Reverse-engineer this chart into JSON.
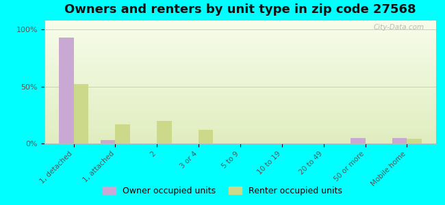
{
  "title": "Owners and renters by unit type in zip code 27568",
  "categories": [
    "1, detached",
    "1, attached",
    "2",
    "3 or 4",
    "5 to 9",
    "10 to 19",
    "20 to 49",
    "50 or more",
    "Mobile home"
  ],
  "owner_values": [
    93,
    3,
    0,
    0,
    0,
    0,
    0,
    5,
    5
  ],
  "renter_values": [
    52,
    17,
    20,
    12,
    0,
    0,
    0,
    0,
    4
  ],
  "owner_color": "#c9a8d4",
  "renter_color": "#ccd98a",
  "background_color": "#00ffff",
  "title_fontsize": 13,
  "ylabel_ticks": [
    "0%",
    "50%",
    "100%"
  ],
  "ylabel_values": [
    0,
    50,
    100
  ],
  "ylim": [
    0,
    108
  ],
  "legend_owner": "Owner occupied units",
  "legend_renter": "Renter occupied units",
  "bar_width": 0.35,
  "watermark": "City-Data.com"
}
